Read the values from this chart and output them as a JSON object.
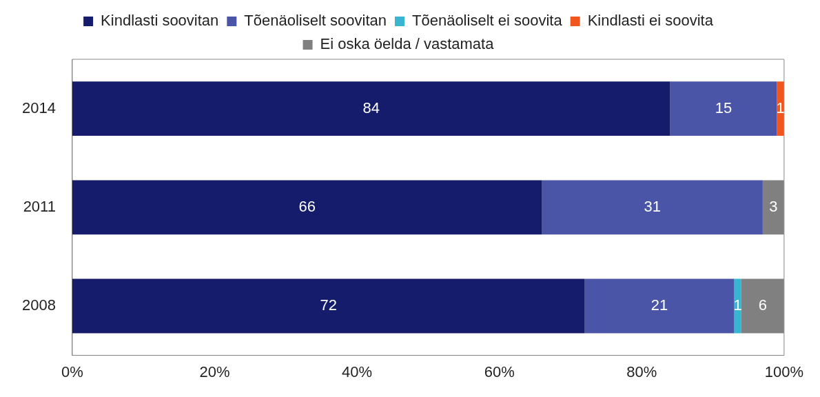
{
  "chart_data": {
    "type": "bar",
    "orientation": "horizontal",
    "stacked": true,
    "data_labels": true,
    "grid": false,
    "legend": "top",
    "categories": [
      "2014",
      "2011",
      "2008"
    ],
    "series": [
      {
        "name": "Kindlasti soovitan",
        "color": "#151c6b",
        "values": [
          84,
          66,
          72
        ]
      },
      {
        "name": "Tõenäoliselt soovitan",
        "color": "#4a55a8",
        "values": [
          15,
          31,
          21
        ]
      },
      {
        "name": "Tõenäoliselt ei soovita",
        "color": "#3ab5d0",
        "values": [
          null,
          null,
          1
        ]
      },
      {
        "name": "Kindlasti ei soovita",
        "color": "#f0561d",
        "values": [
          1,
          null,
          null
        ]
      },
      {
        "name": "Ei oska öelda / vastamata",
        "color": "#808080",
        "values": [
          null,
          3,
          6
        ]
      }
    ],
    "xlim": [
      0,
      100
    ],
    "xticks": [
      {
        "value": 0,
        "label": "0%"
      },
      {
        "value": 20,
        "label": "20%"
      },
      {
        "value": 40,
        "label": "40%"
      },
      {
        "value": 60,
        "label": "60%"
      },
      {
        "value": 80,
        "label": "80%"
      },
      {
        "value": 100,
        "label": "100%"
      }
    ]
  }
}
